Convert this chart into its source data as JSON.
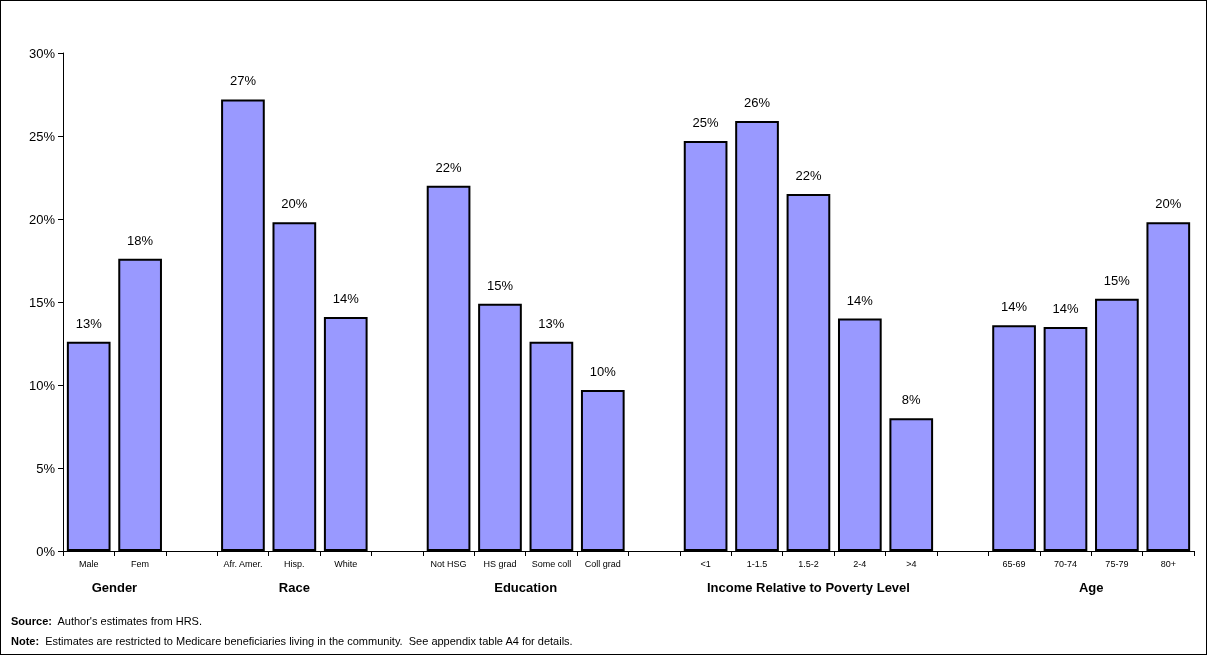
{
  "chart_data": {
    "type": "bar",
    "categories": [
      "Male",
      "Fem",
      null,
      "Afr. Amer.",
      "Hisp.",
      "White",
      null,
      "Not HSG",
      "HS grad",
      "Some coll",
      "Coll grad",
      null,
      "<1",
      "1-1.5",
      "1.5-2",
      "2-4",
      ">4",
      null,
      "65-69",
      "70-74",
      "75-79",
      "80+"
    ],
    "values": [
      12.6,
      17.6,
      null,
      27.2,
      19.8,
      14.1,
      null,
      22.0,
      14.9,
      12.6,
      9.7,
      null,
      24.7,
      25.9,
      21.5,
      14.0,
      8.0,
      null,
      13.6,
      13.5,
      15.2,
      19.8
    ],
    "value_labels": [
      "13%",
      "18%",
      null,
      "27%",
      "20%",
      "14%",
      null,
      "22%",
      "15%",
      "13%",
      "10%",
      null,
      "25%",
      "26%",
      "22%",
      "14%",
      "8%",
      null,
      "14%",
      "14%",
      "15%",
      "20%"
    ],
    "color": "#9999ff",
    "ylim": [
      0,
      30
    ],
    "yticks": [
      {
        "value": 0,
        "label": "0%"
      },
      {
        "value": 5,
        "label": "5%"
      },
      {
        "value": 10,
        "label": "10%"
      },
      {
        "value": 15,
        "label": "15%"
      },
      {
        "value": 20,
        "label": "20%"
      },
      {
        "value": 25,
        "label": "25%"
      },
      {
        "value": 30,
        "label": "30%"
      }
    ],
    "grid": false,
    "annotations": [
      "Gender",
      "Race",
      "Education",
      "Income Relative to Poverty Level",
      "Age",
      "Source:  Author's estimates from HRS.",
      "Note:  Estimates are restricted to Medicare beneficiaries living in the community.  See appendix table A4 for details."
    ]
  }
}
